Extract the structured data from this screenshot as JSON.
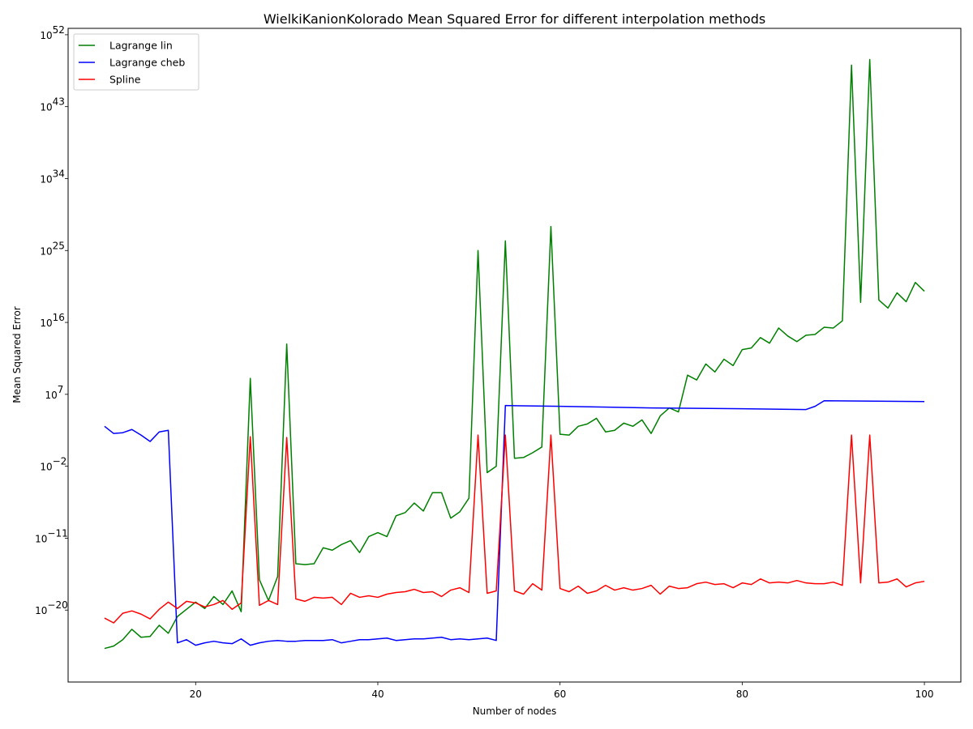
{
  "chart_data": {
    "type": "line",
    "title": "WielkiKanionKolorado Mean Squared Error for different interpolation methods",
    "xlabel": "Number of nodes",
    "ylabel": "Mean Squared Error",
    "yscale": "log",
    "xlim": [
      6,
      104
    ],
    "ylim_log10": [
      -29,
      52.8
    ],
    "xticks": [
      20,
      40,
      60,
      80,
      100
    ],
    "xtick_labels": [
      "20",
      "40",
      "60",
      "80",
      "100"
    ],
    "yticks_log10": [
      -20,
      -11,
      -2,
      7,
      16,
      25,
      34,
      43,
      52
    ],
    "ytick_labels": [
      "-20",
      "-11",
      "-2",
      "7",
      "16",
      "25",
      "34",
      "43",
      "52"
    ],
    "legend_placement": "top-left",
    "grid": false,
    "x": [
      10,
      11,
      12,
      13,
      14,
      15,
      16,
      17,
      18,
      19,
      20,
      21,
      22,
      23,
      24,
      25,
      26,
      27,
      28,
      29,
      30,
      31,
      32,
      33,
      34,
      35,
      36,
      37,
      38,
      39,
      40,
      41,
      42,
      43,
      44,
      45,
      46,
      47,
      48,
      49,
      50,
      51,
      52,
      53,
      54,
      55,
      56,
      57,
      58,
      59,
      60,
      61,
      62,
      63,
      64,
      65,
      66,
      67,
      68,
      69,
      70,
      71,
      72,
      73,
      74,
      75,
      76,
      77,
      78,
      79,
      80,
      81,
      82,
      83,
      84,
      85,
      86,
      87,
      88,
      89,
      90,
      91,
      92,
      93,
      94,
      95,
      96,
      97,
      98,
      99,
      100
    ],
    "series": [
      {
        "name": "Lagrange lin",
        "color": "#008000",
        "log10_values": [
          -24.8,
          -24.5,
          -23.7,
          -22.4,
          -23.4,
          -23.3,
          -21.9,
          -22.9,
          -20.8,
          -19.9,
          -19.0,
          -19.8,
          -18.3,
          -19.3,
          -17.6,
          -20.2,
          9.0,
          -16.2,
          -18.8,
          -15.8,
          13.3,
          -14.2,
          -14.3,
          -14.2,
          -12.2,
          -12.5,
          -11.8,
          -11.3,
          -12.8,
          -10.8,
          -10.3,
          -10.8,
          -8.2,
          -7.8,
          -6.6,
          -7.6,
          -5.3,
          -5.3,
          -8.5,
          -7.7,
          -6.0,
          25.0,
          -2.8,
          -2.0,
          26.2,
          -1.0,
          -0.9,
          -0.3,
          0.4,
          28.0,
          2.0,
          1.9,
          3.0,
          3.3,
          4.0,
          2.3,
          2.5,
          3.4,
          3.0,
          3.8,
          2.1,
          4.3,
          5.3,
          4.8,
          9.4,
          8.8,
          10.8,
          9.8,
          11.4,
          10.6,
          12.6,
          12.8,
          14.1,
          13.4,
          15.3,
          14.3,
          13.6,
          14.4,
          14.5,
          15.4,
          15.3,
          16.2,
          48.2,
          18.5,
          48.9,
          18.8,
          17.8,
          19.7,
          18.6,
          21.0,
          19.9
        ],
        "line_points_log10": [
          [
            10,
            -24.8
          ],
          [
            11,
            -24.5
          ],
          [
            12,
            -23.7
          ],
          [
            13,
            -22.4
          ],
          [
            14,
            -23.4
          ],
          [
            15,
            -23.3
          ],
          [
            16,
            -21.9
          ],
          [
            17,
            -22.9
          ],
          [
            18,
            -20.8
          ],
          [
            19,
            -19.9
          ],
          [
            20,
            -19.0
          ],
          [
            21,
            -19.8
          ],
          [
            22,
            -18.3
          ],
          [
            23,
            -19.3
          ],
          [
            24,
            -17.6
          ],
          [
            25,
            -20.2
          ],
          [
            26,
            9.0
          ],
          [
            27,
            -16.2
          ],
          [
            28,
            -18.8
          ],
          [
            29,
            -15.8
          ],
          [
            30,
            13.3
          ],
          [
            31,
            -14.2
          ],
          [
            32,
            -14.3
          ],
          [
            33,
            -14.2
          ],
          [
            34,
            -12.2
          ],
          [
            35,
            -12.5
          ],
          [
            36,
            -11.8
          ],
          [
            37,
            -11.3
          ],
          [
            38,
            -12.8
          ],
          [
            39,
            -10.8
          ],
          [
            40,
            -10.3
          ],
          [
            41,
            -10.8
          ],
          [
            42,
            -8.2
          ],
          [
            43,
            -7.8
          ],
          [
            44,
            -6.6
          ],
          [
            45,
            -7.6
          ],
          [
            46,
            -5.3
          ],
          [
            47,
            -5.3
          ],
          [
            48,
            -8.5
          ],
          [
            49,
            -7.7
          ],
          [
            50,
            -6.0
          ],
          [
            51,
            25.0
          ],
          [
            52,
            -2.8
          ],
          [
            53,
            -2.0
          ],
          [
            54,
            26.2
          ],
          [
            55,
            -1.0
          ],
          [
            56,
            -0.9
          ],
          [
            57,
            -0.3
          ],
          [
            58,
            0.4
          ],
          [
            59,
            28.0
          ],
          [
            60,
            2.0
          ],
          [
            61,
            1.9
          ],
          [
            62,
            3.0
          ],
          [
            63,
            3.3
          ],
          [
            64,
            4.0
          ],
          [
            65,
            2.3
          ],
          [
            66,
            2.5
          ],
          [
            67,
            3.4
          ],
          [
            68,
            3.0
          ],
          [
            69,
            3.8
          ],
          [
            70,
            2.1
          ],
          [
            71,
            4.3
          ],
          [
            72,
            5.3
          ],
          [
            73,
            4.8
          ],
          [
            74,
            9.4
          ],
          [
            75,
            8.8
          ],
          [
            76,
            10.8
          ],
          [
            77,
            9.8
          ],
          [
            78,
            11.4
          ],
          [
            79,
            10.6
          ],
          [
            80,
            12.6
          ],
          [
            81,
            12.8
          ],
          [
            82,
            14.1
          ],
          [
            83,
            13.4
          ],
          [
            84,
            15.3
          ],
          [
            85,
            14.3
          ],
          [
            86,
            13.6
          ],
          [
            87,
            14.4
          ],
          [
            88,
            14.5
          ],
          [
            89,
            15.4
          ],
          [
            90,
            15.3
          ],
          [
            91,
            16.2
          ],
          [
            92,
            48.2
          ],
          [
            93,
            18.5
          ],
          [
            94,
            48.9
          ],
          [
            95,
            18.8
          ],
          [
            96,
            17.8
          ],
          [
            97,
            19.7
          ],
          [
            98,
            18.6
          ],
          [
            99,
            21.0
          ],
          [
            100,
            19.9
          ]
        ]
      },
      {
        "name": "Lagrange cheb",
        "color": "#0000ff",
        "line_points_log10": [
          [
            10,
            3.0
          ],
          [
            11,
            2.1
          ],
          [
            12,
            2.2
          ],
          [
            13,
            2.6
          ],
          [
            14,
            1.9
          ],
          [
            15,
            1.1
          ],
          [
            16,
            2.3
          ],
          [
            17,
            2.5
          ],
          [
            18,
            -24.1
          ],
          [
            19,
            -23.7
          ],
          [
            20,
            -24.4
          ],
          [
            21,
            -24.1
          ],
          [
            22,
            -23.9
          ],
          [
            23,
            -24.1
          ],
          [
            24,
            -24.2
          ],
          [
            25,
            -23.6
          ],
          [
            26,
            -24.4
          ],
          [
            27,
            -24.1
          ],
          [
            28,
            -23.9
          ],
          [
            29,
            -23.8
          ],
          [
            30,
            -23.9
          ],
          [
            31,
            -23.9
          ],
          [
            32,
            -23.8
          ],
          [
            33,
            -23.8
          ],
          [
            34,
            -23.8
          ],
          [
            35,
            -23.7
          ],
          [
            36,
            -24.1
          ],
          [
            37,
            -23.9
          ],
          [
            38,
            -23.7
          ],
          [
            39,
            -23.7
          ],
          [
            40,
            -23.6
          ],
          [
            41,
            -23.5
          ],
          [
            42,
            -23.8
          ],
          [
            43,
            -23.7
          ],
          [
            44,
            -23.6
          ],
          [
            45,
            -23.6
          ],
          [
            46,
            -23.5
          ],
          [
            47,
            -23.4
          ],
          [
            48,
            -23.7
          ],
          [
            49,
            -23.6
          ],
          [
            50,
            -23.7
          ],
          [
            51,
            -23.6
          ],
          [
            52,
            -23.5
          ],
          [
            53,
            -23.8
          ],
          [
            54,
            5.6
          ],
          [
            60,
            5.5
          ],
          [
            70,
            5.3
          ],
          [
            80,
            5.2
          ],
          [
            87,
            5.1
          ],
          [
            88,
            5.5
          ],
          [
            89,
            6.2
          ],
          [
            100,
            6.1
          ]
        ]
      },
      {
        "name": "Spline",
        "color": "#ff0000",
        "line_points_log10": [
          [
            10,
            -21.0
          ],
          [
            11,
            -21.6
          ],
          [
            12,
            -20.4
          ],
          [
            13,
            -20.1
          ],
          [
            14,
            -20.5
          ],
          [
            15,
            -21.1
          ],
          [
            16,
            -19.9
          ],
          [
            17,
            -19.0
          ],
          [
            18,
            -19.8
          ],
          [
            19,
            -18.9
          ],
          [
            20,
            -19.1
          ],
          [
            21,
            -19.6
          ],
          [
            22,
            -19.3
          ],
          [
            23,
            -18.8
          ],
          [
            24,
            -19.9
          ],
          [
            25,
            -19.1
          ],
          [
            26,
            1.7
          ],
          [
            27,
            -19.4
          ],
          [
            28,
            -18.8
          ],
          [
            29,
            -19.3
          ],
          [
            30,
            1.6
          ],
          [
            31,
            -18.6
          ],
          [
            32,
            -18.9
          ],
          [
            33,
            -18.4
          ],
          [
            34,
            -18.5
          ],
          [
            35,
            -18.4
          ],
          [
            36,
            -19.3
          ],
          [
            37,
            -17.9
          ],
          [
            38,
            -18.4
          ],
          [
            39,
            -18.2
          ],
          [
            40,
            -18.4
          ],
          [
            41,
            -18.0
          ],
          [
            42,
            -17.8
          ],
          [
            43,
            -17.7
          ],
          [
            44,
            -17.4
          ],
          [
            45,
            -17.8
          ],
          [
            46,
            -17.7
          ],
          [
            47,
            -18.3
          ],
          [
            48,
            -17.5
          ],
          [
            49,
            -17.2
          ],
          [
            50,
            -17.8
          ],
          [
            51,
            1.9
          ],
          [
            52,
            -17.9
          ],
          [
            53,
            -17.6
          ],
          [
            54,
            1.9
          ],
          [
            55,
            -17.6
          ],
          [
            56,
            -18.0
          ],
          [
            57,
            -16.7
          ],
          [
            58,
            -17.5
          ],
          [
            59,
            1.9
          ],
          [
            60,
            -17.3
          ],
          [
            61,
            -17.7
          ],
          [
            62,
            -17.0
          ],
          [
            63,
            -17.9
          ],
          [
            64,
            -17.6
          ],
          [
            65,
            -16.9
          ],
          [
            66,
            -17.5
          ],
          [
            67,
            -17.2
          ],
          [
            68,
            -17.5
          ],
          [
            69,
            -17.3
          ],
          [
            70,
            -16.9
          ],
          [
            71,
            -18.0
          ],
          [
            72,
            -17.0
          ],
          [
            73,
            -17.3
          ],
          [
            74,
            -17.2
          ],
          [
            75,
            -16.7
          ],
          [
            76,
            -16.5
          ],
          [
            77,
            -16.8
          ],
          [
            78,
            -16.7
          ],
          [
            79,
            -17.2
          ],
          [
            80,
            -16.6
          ],
          [
            81,
            -16.8
          ],
          [
            82,
            -16.1
          ],
          [
            83,
            -16.6
          ],
          [
            84,
            -16.5
          ],
          [
            85,
            -16.6
          ],
          [
            86,
            -16.3
          ],
          [
            87,
            -16.6
          ],
          [
            88,
            -16.7
          ],
          [
            89,
            -16.7
          ],
          [
            90,
            -16.5
          ],
          [
            91,
            -16.9
          ],
          [
            92,
            1.9
          ],
          [
            93,
            -16.6
          ],
          [
            94,
            1.9
          ],
          [
            95,
            -16.6
          ],
          [
            96,
            -16.5
          ],
          [
            97,
            -16.1
          ],
          [
            98,
            -17.1
          ],
          [
            99,
            -16.6
          ],
          [
            100,
            -16.4
          ]
        ]
      }
    ]
  }
}
